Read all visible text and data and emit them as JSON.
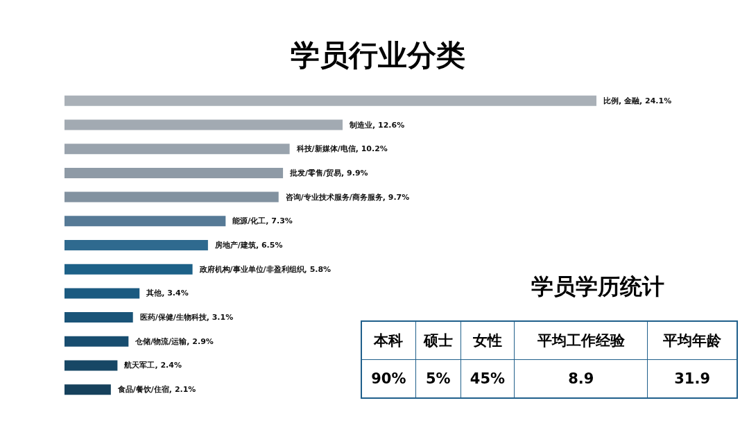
{
  "chart_data": [
    {
      "type": "bar",
      "orientation": "horizontal",
      "title": "学员行业分类",
      "categories": [
        null,
        null,
        null,
        null,
        null,
        null,
        null,
        null,
        null,
        null,
        null,
        null,
        null
      ],
      "values": [
        24.1,
        12.6,
        10.2,
        9.9,
        9.7,
        7.3,
        6.5,
        5.8,
        3.4,
        3.1,
        2.9,
        2.4,
        2.1
      ],
      "value_labels": [
        "比例, 金融, 24.1%",
        "制造业, 12.6%",
        "科技/新媒体/电信, 10.2%",
        "批发/零售/贸易, 9.9%",
        "咨询/专业技术服务/商务服务, 9.7%",
        "能源/化工, 7.3%",
        "房地产/建筑, 6.5%",
        "政府机构/事业单位/非盈利组织, 5.8%",
        "其他, 3.4%",
        "医药/保健/生物科技, 3.1%",
        "仓储/物流/运输, 2.9%",
        "航天军工, 2.4%",
        "食品/餐饮/住宿, 2.1%"
      ],
      "colors": [
        "#a9b0b7",
        "#a2aab2",
        "#99a3ad",
        "#8e9aa6",
        "#8292a0",
        "#567a96",
        "#2f6a8f",
        "#1d6188",
        "#1b5a80",
        "#1a5478",
        "#184d6f",
        "#174765",
        "#16415c"
      ]
    },
    {
      "type": "other",
      "title": "学员学历统计",
      "categories": [
        "本科",
        "硕士",
        "女性",
        "平均工作经验",
        "平均年龄"
      ],
      "value_labels": [
        "90%",
        "5%",
        "45%",
        "8.9",
        "31.9"
      ]
    }
  ]
}
